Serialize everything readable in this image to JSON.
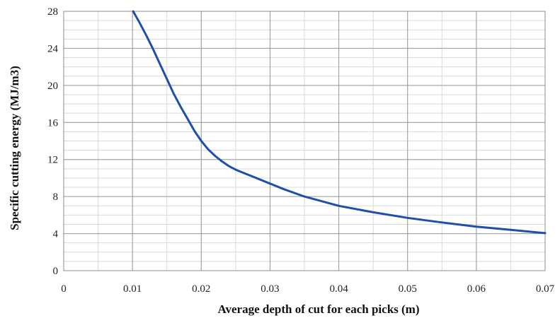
{
  "chart_data": {
    "type": "line",
    "xlabel": "Average depth of cut for each picks (m)",
    "ylabel": "Specific cutting energy (MJ/m3)",
    "xlim": [
      0,
      0.07
    ],
    "ylim": [
      0,
      28
    ],
    "x_ticks": [
      "0",
      "0.01",
      "0.02",
      "0.03",
      "0.04",
      "0.05",
      "0.06",
      "0.07"
    ],
    "y_ticks": [
      "0",
      "4",
      "8",
      "12",
      "16",
      "20",
      "24",
      "28"
    ],
    "x_tick_values": [
      0,
      0.01,
      0.02,
      0.03,
      0.04,
      0.05,
      0.06,
      0.07
    ],
    "y_tick_values": [
      0,
      4,
      8,
      12,
      16,
      20,
      24,
      28
    ],
    "grid": true,
    "x_minor_step": 0.005,
    "y_minor_step": 1,
    "line_color": "#1f4fa8",
    "series": [
      {
        "x": [
          0.0101,
          0.011,
          0.012,
          0.013,
          0.014,
          0.015,
          0.016,
          0.017,
          0.018,
          0.019,
          0.02,
          0.021,
          0.022,
          0.023,
          0.024,
          0.025,
          0.026,
          0.028,
          0.03,
          0.032,
          0.035,
          0.04,
          0.045,
          0.05,
          0.055,
          0.06,
          0.065,
          0.07
        ],
        "y": [
          28.0,
          26.8,
          25.4,
          23.9,
          22.3,
          20.7,
          19.1,
          17.7,
          16.4,
          15.1,
          14.0,
          13.1,
          12.4,
          11.8,
          11.3,
          10.9,
          10.6,
          10.0,
          9.4,
          8.8,
          8.0,
          7.0,
          6.3,
          5.7,
          5.2,
          4.75,
          4.4,
          4.05
        ]
      }
    ]
  }
}
